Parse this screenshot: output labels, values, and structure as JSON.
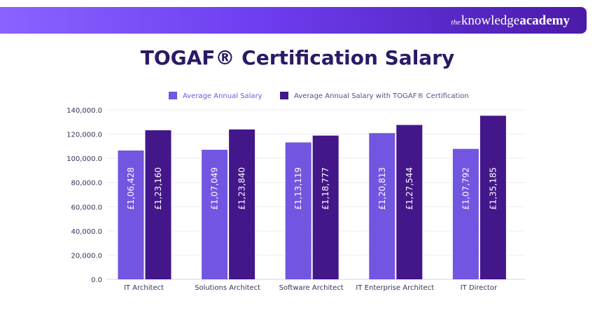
{
  "brand": {
    "prefix": "the",
    "knowledge": "knowledge",
    "academy": "academy"
  },
  "chart_data": {
    "type": "bar",
    "title": "TOGAF® Certification Salary",
    "categories": [
      "IT Architect",
      "Solutions Architect",
      "Software Architect",
      "IT Enterprise Architect",
      "IT Director"
    ],
    "series": [
      {
        "name": "Average Annual Salary",
        "color": "#7255e0",
        "values": [
          106428,
          107049,
          113119,
          120813,
          107792
        ],
        "labels": [
          "£1,06,428",
          "£1,07,049",
          "£1,13,119",
          "£1,20,813",
          "£1,07,792"
        ]
      },
      {
        "name": "Average Annual Salary with TOGAF® Certification",
        "color": "#43168a",
        "values": [
          123160,
          123840,
          118777,
          127544,
          135185
        ],
        "labels": [
          "£1,23,160",
          "£1,23,840",
          "£1,18,777",
          "£1,27,544",
          "£1,35,185"
        ]
      }
    ],
    "ylim": [
      0,
      140000
    ],
    "yticks": [
      "0.0",
      "20,000.0",
      "40,000.0",
      "60,000.0",
      "80,000.0",
      "100,000.0",
      "120,000.0",
      "140,000.0"
    ],
    "ytick_values": [
      0,
      20000,
      40000,
      60000,
      80000,
      100000,
      120000,
      140000
    ],
    "grid": true,
    "legend_position": "top"
  }
}
